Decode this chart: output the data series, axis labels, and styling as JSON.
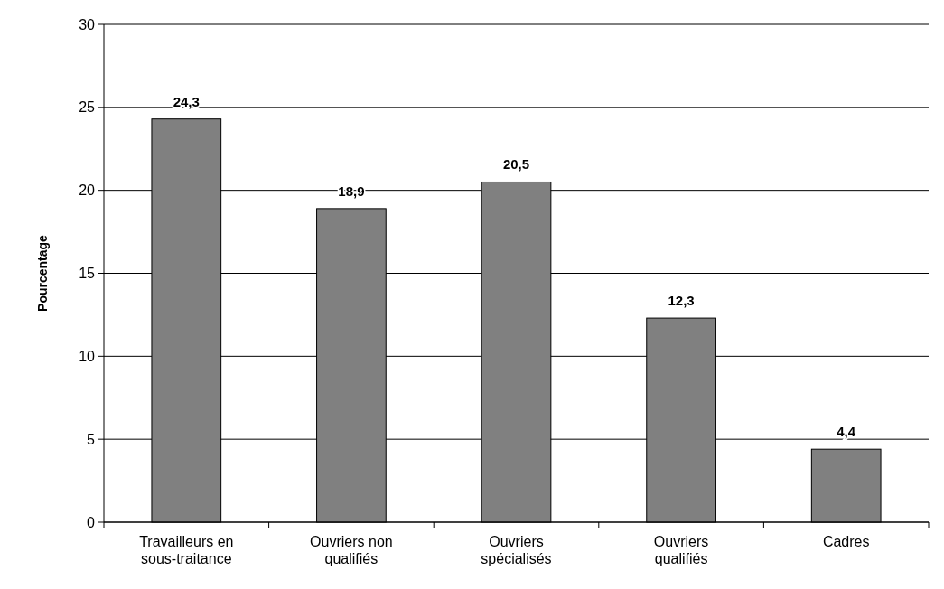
{
  "chart_data": {
    "type": "bar",
    "ylabel": "Pourcentage",
    "categories": [
      "Travailleurs en sous-traitance",
      "Ouvriers non qualifiés",
      "Ouvriers spécialisés",
      "Ouvriers qualifiés",
      "Cadres"
    ],
    "values": [
      24.3,
      18.9,
      20.5,
      12.3,
      4.4
    ],
    "value_labels": [
      "24,3",
      "18,9",
      "20,5",
      "12,3",
      "4,4"
    ],
    "color": "#808080",
    "ylim": [
      0,
      30
    ],
    "yticks": [
      0,
      5,
      10,
      15,
      20,
      25,
      30
    ],
    "grid": "y"
  }
}
